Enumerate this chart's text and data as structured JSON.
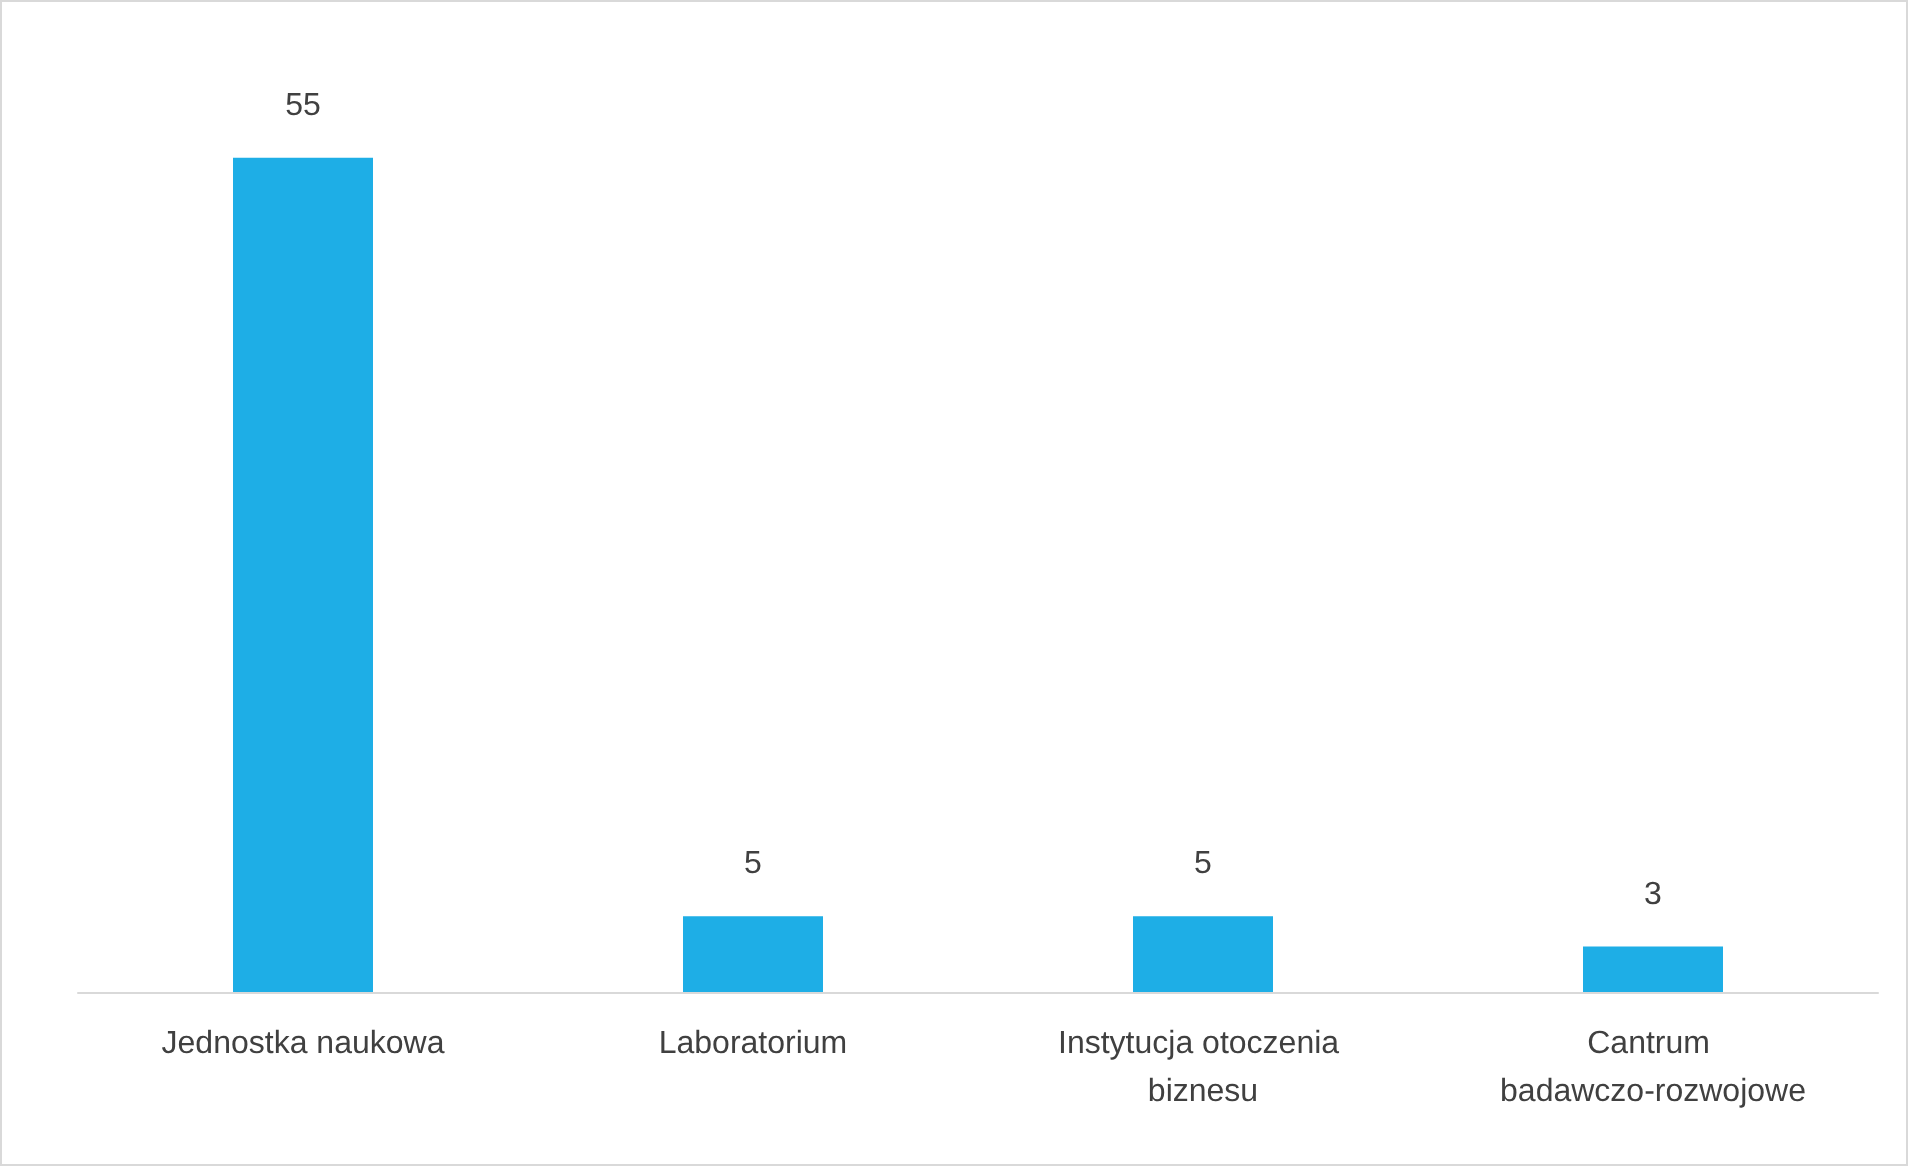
{
  "chart_data": {
    "type": "bar",
    "categories": [
      "Jednostka naukowa",
      "Laboratorium",
      "Instytucja otoczenia biznesu",
      "Cantrum badawczo-rozwojowe"
    ],
    "values": [
      55,
      5,
      5,
      3
    ],
    "color": "#1eaee6",
    "data_labels": true
  }
}
